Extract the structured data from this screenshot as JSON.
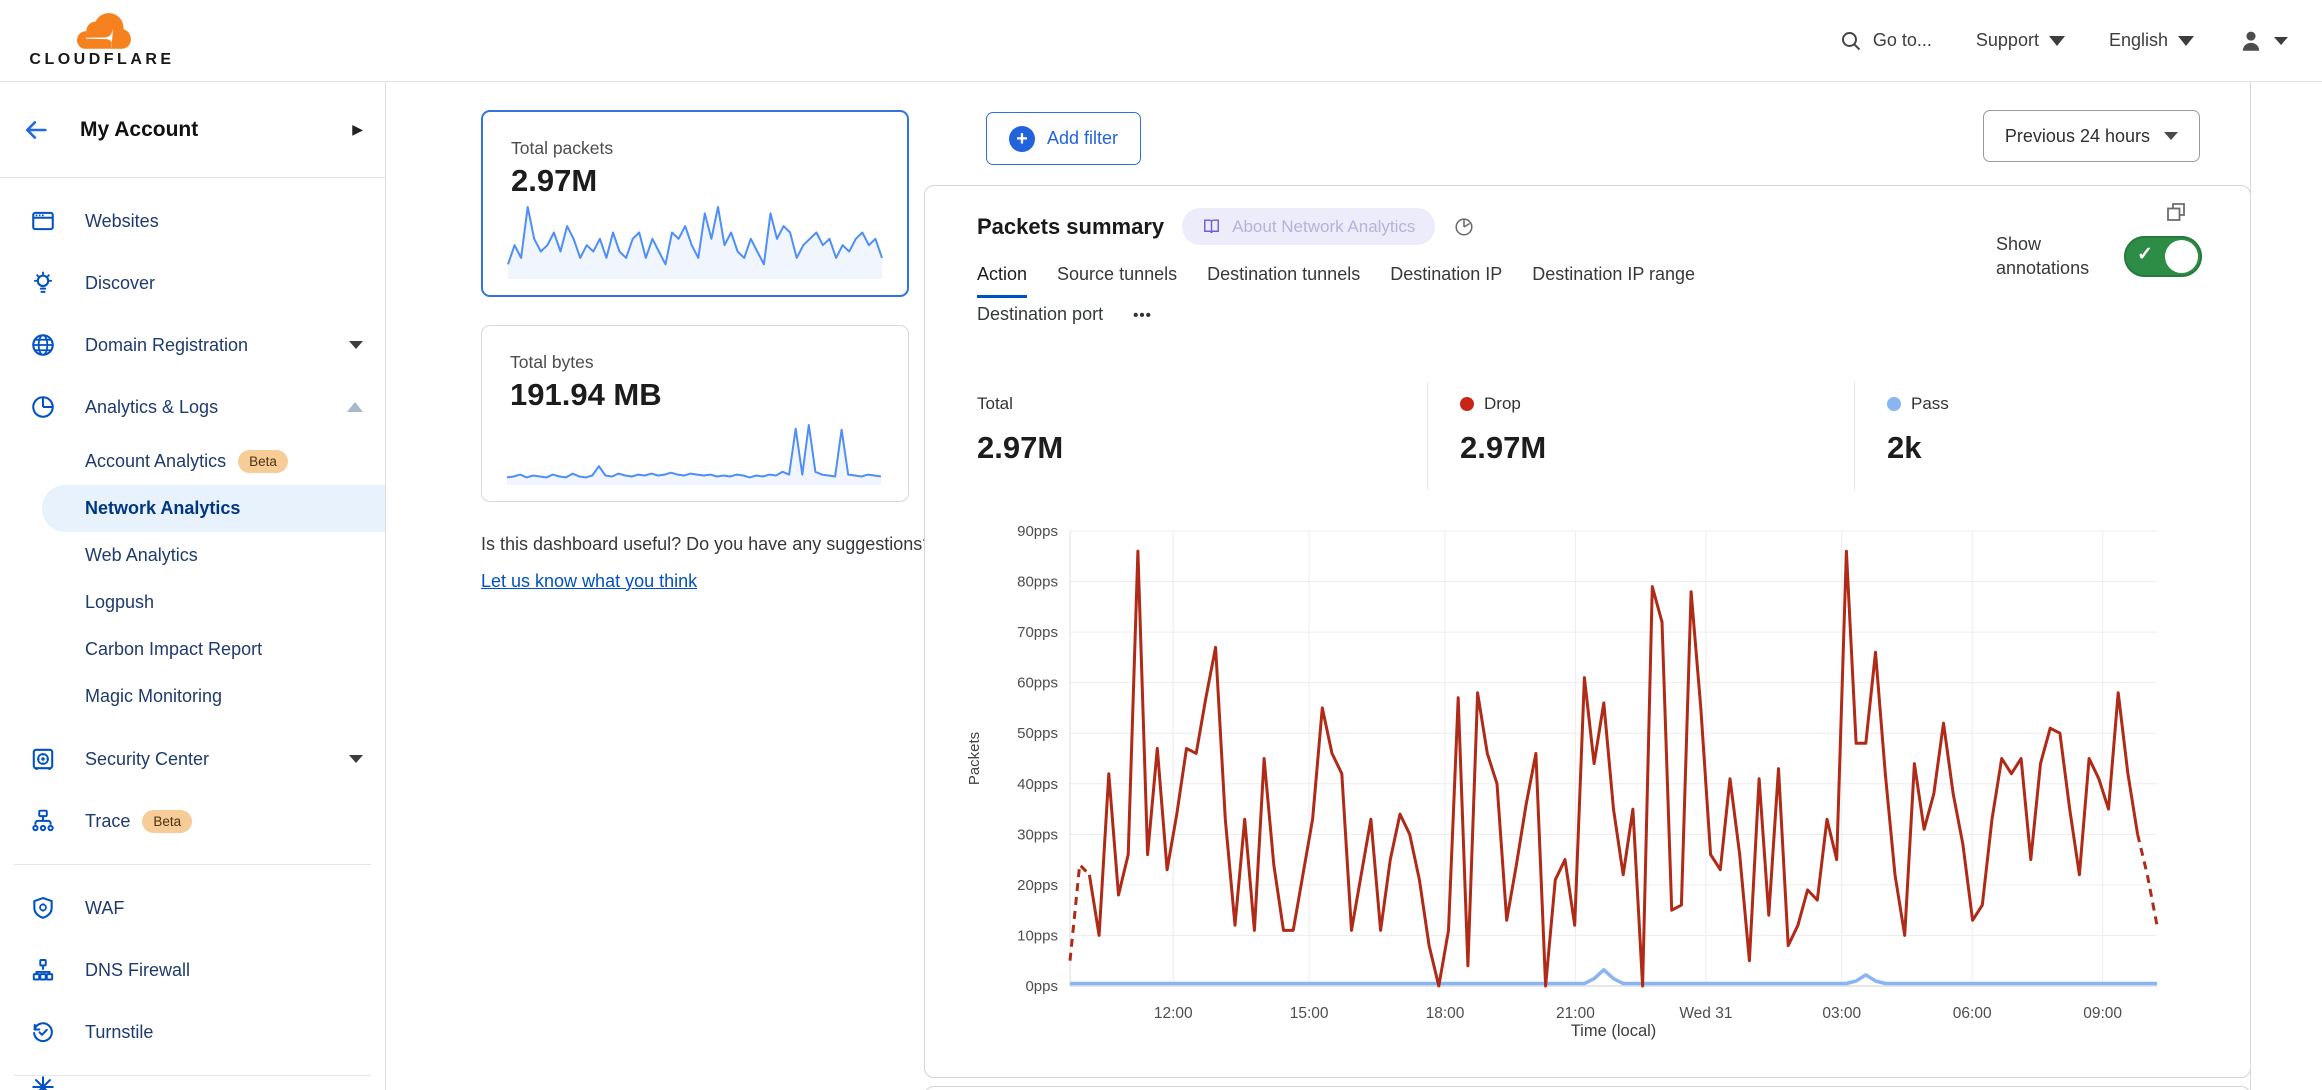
{
  "header": {
    "logo_text": "CLOUDFLARE",
    "go_to": "Go to...",
    "support": "Support",
    "language": "English"
  },
  "sidebar": {
    "account_label": "My Account",
    "websites": "Websites",
    "discover": "Discover",
    "domain_registration": "Domain Registration",
    "analytics_logs": "Analytics & Logs",
    "account_analytics_badge": "Beta",
    "analytics_children": [
      "Account Analytics",
      "Network Analytics",
      "Web Analytics",
      "Logpush",
      "Carbon Impact Report",
      "Magic Monitoring"
    ],
    "security_center": "Security Center",
    "trace": "Trace",
    "trace_badge": "Beta",
    "waf": "WAF",
    "dns_firewall": "DNS Firewall",
    "turnstile": "Turnstile"
  },
  "stat_cards": [
    {
      "title": "Total packets",
      "value": "2.97M"
    },
    {
      "title": "Total bytes",
      "value": "191.94 MB"
    }
  ],
  "feedback": {
    "question": "Is this dashboard useful? Do you have any suggestions?",
    "link": "Let us know what you think"
  },
  "toolbar": {
    "add_filter": "Add filter",
    "time_range": "Previous 24 hours"
  },
  "panel": {
    "title": "Packets summary",
    "about_pill": "About Network Analytics",
    "tabs": [
      "Action",
      "Source tunnels",
      "Destination tunnels",
      "Destination IP",
      "Destination IP range",
      "Destination port"
    ],
    "active_tab": "Action",
    "more_label": "•••",
    "show_annotations": "Show annotations",
    "stats": [
      {
        "label": "Total",
        "value": "2.97M"
      },
      {
        "label": "Drop",
        "value": "2.97M",
        "dot": "#c92418"
      },
      {
        "label": "Pass",
        "value": "2k",
        "dot": "#8ab5f3"
      }
    ]
  },
  "sparklines": {
    "packets": [
      2,
      5,
      3,
      11,
      6,
      4,
      5,
      7,
      4,
      8,
      6,
      3,
      5,
      4,
      6,
      3,
      7,
      4,
      3,
      6,
      7,
      3,
      6,
      4,
      2,
      7,
      6,
      8,
      5,
      3,
      10,
      6,
      11,
      5,
      7,
      4,
      3,
      6,
      4,
      2,
      10,
      6,
      8,
      7,
      3,
      5,
      6,
      7,
      5,
      6,
      3,
      5,
      4,
      6,
      7,
      5,
      6,
      3
    ],
    "bytes": [
      6,
      7,
      9,
      6,
      8,
      7,
      6,
      9,
      7,
      6,
      10,
      7,
      6,
      8,
      18,
      8,
      7,
      10,
      8,
      7,
      9,
      8,
      10,
      8,
      9,
      11,
      9,
      8,
      10,
      9,
      8,
      9,
      7,
      8,
      7,
      9,
      8,
      6,
      8,
      7,
      9,
      8,
      12,
      9,
      58,
      9,
      62,
      12,
      9,
      8,
      7,
      57,
      9,
      8,
      7,
      9,
      8,
      7
    ]
  },
  "colors": {
    "accent_blue": "#2163dd",
    "link_blue": "#0051c3",
    "spark_blue": "#4e8ef7",
    "toggle_green": "#2d8d46"
  },
  "chart_data": {
    "type": "line",
    "title": "Packets summary",
    "xlabel": "Time (local)",
    "ylabel": "Packets",
    "ylim": [
      0,
      90
    ],
    "y_ticks": [
      0,
      10,
      20,
      30,
      40,
      50,
      60,
      70,
      80,
      90
    ],
    "y_tick_suffix": "pps",
    "x_ticks": [
      {
        "label": "12:00",
        "f": 0.095
      },
      {
        "label": "15:00",
        "f": 0.22
      },
      {
        "label": "18:00",
        "f": 0.345
      },
      {
        "label": "21:00",
        "f": 0.465
      },
      {
        "label": "Wed 31",
        "f": 0.585
      },
      {
        "label": "03:00",
        "f": 0.71
      },
      {
        "label": "06:00",
        "f": 0.83
      },
      {
        "label": "09:00",
        "f": 0.95
      }
    ],
    "dashed_head_points": 2,
    "dashed_tail_points": 2,
    "series": [
      {
        "name": "Drop",
        "color": "#b02a18",
        "values": [
          5,
          24,
          22,
          10,
          42,
          18,
          26,
          86,
          26,
          47,
          23,
          34,
          47,
          46,
          57,
          67,
          33,
          12,
          33,
          11,
          45,
          24,
          11,
          11,
          22,
          33,
          55,
          46,
          42,
          11,
          22,
          33,
          11,
          25,
          34,
          30,
          21,
          8,
          0,
          11,
          57,
          4,
          58,
          46,
          40,
          13,
          24,
          36,
          46,
          0,
          21,
          25,
          12,
          61,
          44,
          56,
          35,
          22,
          35,
          0,
          79,
          72,
          15,
          16,
          78,
          55,
          26,
          23,
          41,
          26,
          5,
          41,
          14,
          43,
          8,
          12,
          19,
          17,
          33,
          25,
          86,
          48,
          48,
          66,
          42,
          22,
          10,
          44,
          31,
          38,
          52,
          38,
          28,
          13,
          16,
          33,
          45,
          42,
          45,
          25,
          44,
          51,
          50,
          35,
          22,
          45,
          41,
          35,
          58,
          42,
          30,
          22,
          12
        ]
      },
      {
        "name": "Pass",
        "color": "#8ab5f3",
        "baseline": 0.5,
        "bumps": [
          {
            "index": 55,
            "value": 3.2
          },
          {
            "index": 82,
            "value": 2.2
          }
        ]
      }
    ]
  }
}
